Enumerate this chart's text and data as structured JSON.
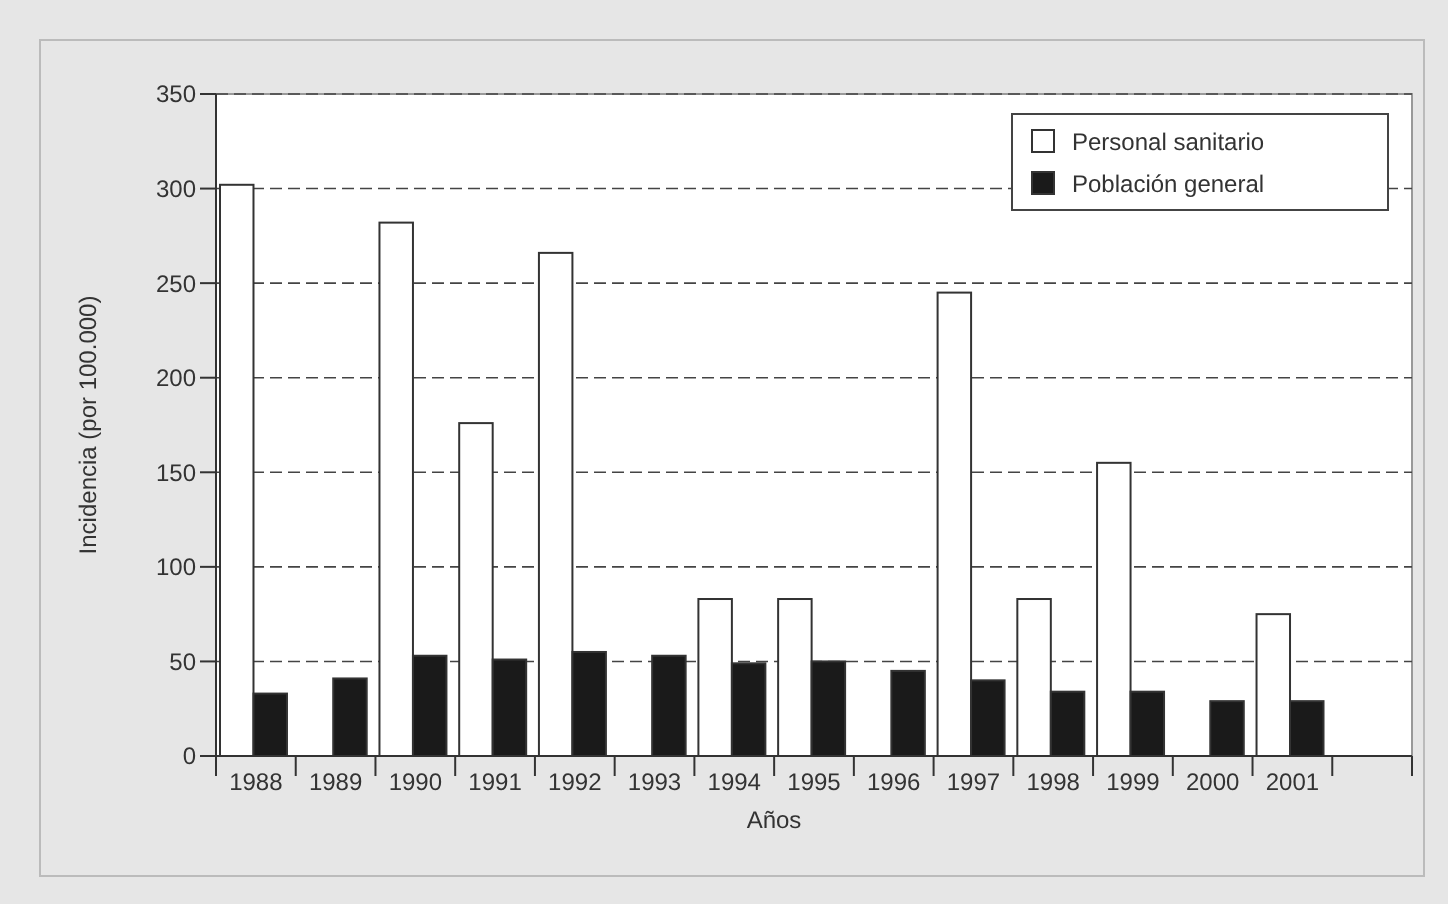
{
  "chart_data": {
    "type": "bar",
    "xlabel": "Años",
    "ylabel": "Incidencia (por 100.000)",
    "categories": [
      "1988",
      "1989",
      "1990",
      "1991",
      "1992",
      "1993",
      "1994",
      "1995",
      "1996",
      "1997",
      "1998",
      "1999",
      "2000",
      "2001",
      null
    ],
    "series": [
      {
        "name": "Personal sanitario",
        "color": "#ffffff",
        "values": [
          302,
          null,
          282,
          176,
          266,
          null,
          83,
          83,
          null,
          245,
          83,
          155,
          null,
          75,
          null
        ]
      },
      {
        "name": "Población general",
        "color": "#1a1a1a",
        "values": [
          33,
          41,
          53,
          51,
          55,
          53,
          49,
          50,
          45,
          40,
          34,
          34,
          29,
          29,
          null
        ]
      }
    ],
    "ylim": [
      0,
      350
    ],
    "yticks": [
      0,
      50,
      100,
      150,
      200,
      250,
      300,
      350
    ],
    "grid": "y",
    "legend": "top right"
  }
}
